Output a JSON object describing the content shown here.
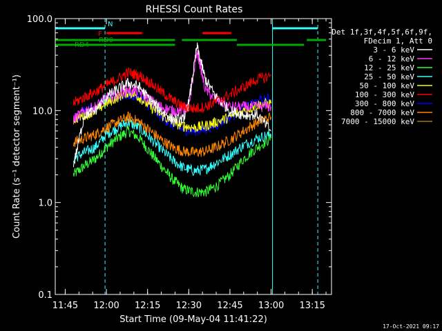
{
  "chart_data": {
    "type": "line",
    "title": "RHESSI Count Rates",
    "xlabel": "Start Time (09-May-04 11:41:22)",
    "ylabel": "Count Rate (s⁻¹ detector segment⁻¹)",
    "y_scale": "log",
    "ylim": [
      0.1,
      100.0
    ],
    "y_ticks": [
      "0.1",
      "1.0",
      "10.0",
      "100.0"
    ],
    "x_ticks": [
      "11:45",
      "12:00",
      "12:15",
      "12:30",
      "12:45",
      "13:00",
      "13:15"
    ],
    "xlim": [
      "11:41:22",
      "13:22:00"
    ],
    "grid": false,
    "legend_position": "right",
    "legend_header": [
      "Det 1f,3f,4f,5f,6f,9f,",
      "FDecim 1, Att 0"
    ],
    "series": [
      {
        "name": "3 - 6 keV",
        "color": "#ffffff",
        "x": [
          "11:48",
          "11:52",
          "11:56",
          "12:00",
          "12:04",
          "12:08",
          "12:12",
          "12:16",
          "12:20",
          "12:24",
          "12:28",
          "12:30",
          "12:33",
          "12:36",
          "12:40",
          "12:45",
          "12:50",
          "12:55",
          "13:00"
        ],
        "values": [
          2.5,
          9,
          10,
          14,
          17,
          20,
          18,
          13,
          10,
          8,
          8,
          12,
          50,
          22,
          14,
          10,
          9,
          9,
          6
        ]
      },
      {
        "name": "6 - 12 keV",
        "color": "#ff33ff",
        "x": [
          "11:48",
          "11:52",
          "11:56",
          "12:00",
          "12:04",
          "12:08",
          "12:12",
          "12:16",
          "12:20",
          "12:24",
          "12:28",
          "12:30",
          "12:33",
          "12:36",
          "12:40",
          "12:45",
          "12:50",
          "12:55",
          "13:00"
        ],
        "values": [
          8,
          10,
          11,
          14,
          15,
          17,
          16,
          13,
          11,
          10,
          10,
          11,
          45,
          17,
          13,
          11,
          11,
          11,
          11
        ]
      },
      {
        "name": "12 - 25 keV",
        "color": "#33ff33",
        "x": [
          "11:48",
          "11:52",
          "11:56",
          "12:00",
          "12:04",
          "12:08",
          "12:12",
          "12:16",
          "12:20",
          "12:24",
          "12:28",
          "12:32",
          "12:36",
          "12:40",
          "12:45",
          "12:50",
          "12:55",
          "13:00"
        ],
        "values": [
          2,
          2.5,
          3,
          4,
          5,
          6,
          5,
          3.5,
          2.5,
          1.8,
          1.4,
          1.3,
          1.3,
          1.5,
          2,
          3,
          4,
          5
        ]
      },
      {
        "name": "25 - 50 keV",
        "color": "#33ffff",
        "x": [
          "11:48",
          "11:52",
          "11:56",
          "12:00",
          "12:04",
          "12:08",
          "12:12",
          "12:16",
          "12:20",
          "12:24",
          "12:28",
          "12:32",
          "12:36",
          "12:40",
          "12:45",
          "12:50",
          "12:55",
          "13:00"
        ],
        "values": [
          3,
          3.5,
          4,
          5.5,
          6.5,
          7.5,
          6.5,
          5,
          3.8,
          2.9,
          2.4,
          2.2,
          2.3,
          2.7,
          3.3,
          4.2,
          5,
          5.5
        ]
      },
      {
        "name": "50 - 100 keV",
        "color": "#ffff00",
        "x": [
          "11:48",
          "11:52",
          "11:56",
          "12:00",
          "12:04",
          "12:08",
          "12:12",
          "12:16",
          "12:20",
          "12:24",
          "12:28",
          "12:32",
          "12:36",
          "12:40",
          "12:45",
          "12:50",
          "12:55",
          "13:00"
        ],
        "values": [
          8,
          9,
          10,
          12,
          14,
          16,
          14,
          11,
          9,
          7.5,
          6.8,
          6.5,
          6.8,
          7.5,
          8.5,
          10,
          11.5,
          12
        ]
      },
      {
        "name": "100 - 300 keV",
        "color": "#ff0000",
        "x": [
          "11:48",
          "11:52",
          "11:56",
          "12:00",
          "12:04",
          "12:08",
          "12:12",
          "12:16",
          "12:20",
          "12:24",
          "12:28",
          "12:32",
          "12:36",
          "12:40",
          "12:45",
          "12:50",
          "12:55",
          "13:00"
        ],
        "values": [
          12,
          14,
          16,
          19,
          22,
          26,
          24,
          20,
          16,
          13,
          11,
          10.5,
          11,
          12.5,
          15,
          18,
          22,
          24
        ]
      },
      {
        "name": "300 - 800 keV",
        "color": "#0000ff",
        "x": [
          "11:48",
          "11:52",
          "11:56",
          "12:00",
          "12:04",
          "12:08",
          "12:12",
          "12:16",
          "12:20",
          "12:24",
          "12:28",
          "12:32",
          "12:36",
          "12:40",
          "12:45",
          "12:50",
          "12:55",
          "13:00"
        ],
        "values": [
          8,
          10,
          11,
          13,
          14,
          15,
          14,
          11,
          8.5,
          7,
          6.2,
          6,
          6.3,
          7,
          8.5,
          10.5,
          12.5,
          13.5
        ]
      },
      {
        "name": "800 - 7000 keV",
        "color": "#ff8800",
        "x": [
          "11:48",
          "11:52",
          "11:56",
          "12:00",
          "12:04",
          "12:08",
          "12:12",
          "12:16",
          "12:20",
          "12:24",
          "12:28",
          "12:32",
          "12:36",
          "12:40",
          "12:45",
          "12:50",
          "12:55",
          "13:00"
        ],
        "values": [
          4.5,
          5,
          5.5,
          6.5,
          7.5,
          8.5,
          7.5,
          6,
          4.8,
          4,
          3.6,
          3.5,
          3.6,
          4,
          4.8,
          6,
          7.5,
          8.5
        ]
      },
      {
        "name": "7000 - 15000 keV",
        "color": "#aa7700",
        "x": [],
        "values": []
      }
    ],
    "annotations": {
      "attenuator_bars": [
        {
          "label": "N",
          "color": "#33ffff",
          "x": [
            "11:41:22",
            "11:59:30"
          ]
        },
        {
          "label": "",
          "color": "#33ffff",
          "x": [
            "13:00:30",
            "13:17:00"
          ]
        }
      ],
      "flare_bars": [
        {
          "label": "F",
          "color": "#ff0000",
          "x": [
            "12:00:00",
            "12:13:00"
          ]
        },
        {
          "label": "",
          "color": "#ff0000",
          "x": [
            "12:35:00",
            "12:45:30"
          ]
        }
      ],
      "rd_bars": [
        {
          "label": "RD0",
          "color": "#00aa00",
          "x": [
            "11:41:22",
            "12:25:00"
          ]
        },
        {
          "label": "",
          "color": "#00aa00",
          "x": [
            "12:27:30",
            "12:47:30"
          ]
        },
        {
          "label": "",
          "color": "#00aa00",
          "x": [
            "13:13:00",
            "13:20:00"
          ]
        },
        {
          "label": "RD4",
          "color": "#00aa00",
          "x": [
            "11:41:22",
            "12:25:00"
          ]
        },
        {
          "label": "",
          "color": "#00aa00",
          "x": [
            "12:47:30",
            "13:12:00"
          ]
        }
      ],
      "vertical_lines": [
        {
          "x": "11:59:30",
          "style": "dashed",
          "color": "#33ffff"
        },
        {
          "x": "13:00:30",
          "style": "solid",
          "color": "#33ffff"
        },
        {
          "x": "13:17:00",
          "style": "dashed",
          "color": "#33ffff"
        }
      ]
    }
  },
  "footer": {
    "date_stamp": "17-Oct-2021 09:17"
  }
}
